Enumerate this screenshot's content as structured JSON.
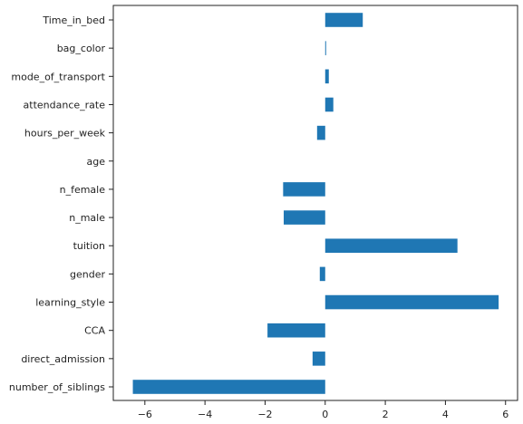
{
  "chart_data": {
    "type": "bar",
    "orientation": "horizontal",
    "categories": [
      "Time_in_bed",
      "bag_color",
      "mode_of_transport",
      "attendance_rate",
      "hours_per_week",
      "age",
      "n_female",
      "n_male",
      "tuition",
      "gender",
      "learning_style",
      "CCA",
      "direct_admission",
      "number_of_siblings"
    ],
    "values": [
      1.25,
      0.03,
      0.12,
      0.27,
      -0.27,
      0.0,
      -1.4,
      -1.38,
      4.4,
      -0.18,
      5.77,
      -1.92,
      -0.42,
      -6.4
    ],
    "xticks": [
      -6,
      -4,
      -2,
      0,
      2,
      4,
      6
    ],
    "xlim": [
      -7.05,
      6.4
    ],
    "grid": false,
    "bar_color": "#1f77b4",
    "title": "",
    "xlabel": "",
    "ylabel": ""
  }
}
